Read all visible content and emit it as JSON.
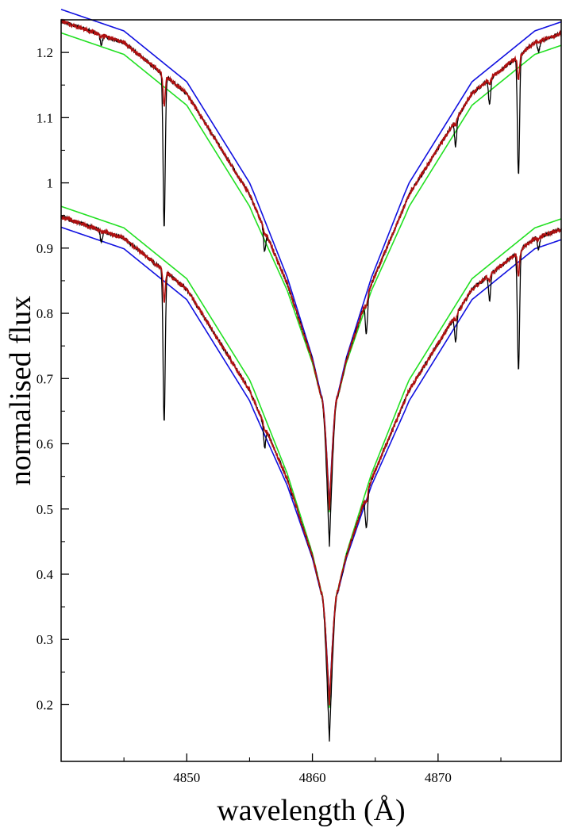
{
  "chart_data": {
    "type": "line",
    "title": "",
    "xlabel": "wavelength (Å)",
    "ylabel": "normalised flux",
    "xlim": [
      4840.0,
      4879.8
    ],
    "ylim": [
      0.113,
      1.25
    ],
    "xticks": [
      4850,
      4860,
      4870
    ],
    "yticks": [
      0.2,
      0.3,
      0.4,
      0.5,
      0.6,
      0.7,
      0.8,
      0.9,
      1,
      1.1,
      1.2
    ],
    "xtick_labels": [
      "4850",
      "4860",
      "4870"
    ],
    "ytick_labels": [
      "0.2",
      "0.3",
      "0.4",
      "0.5",
      "0.6",
      "0.7",
      "0.8",
      "0.9",
      "1",
      "1.1",
      "1.2"
    ],
    "grid": false,
    "line_center": 4861.35,
    "spectra": [
      {
        "offset": 0.3,
        "profile_anchors": [
          [
            4840.0,
            1.248
          ],
          [
            4845.0,
            1.215
          ],
          [
            4850.0,
            1.137
          ],
          [
            4855.0,
            0.982
          ],
          [
            4858.0,
            0.845
          ],
          [
            4860.0,
            0.728
          ],
          [
            4860.7,
            0.672
          ]
        ],
        "core_bottom": {
          "observed": 0.444,
          "model_green": 0.495,
          "model_blue": 0.504,
          "model_red": 0.5
        },
        "absorption_lines": [
          {
            "x": 4843.2,
            "y": 1.21
          },
          {
            "x": 4848.2,
            "y": 0.932
          },
          {
            "x": 4856.2,
            "y": 0.895
          },
          {
            "x": 4864.3,
            "y": 0.769
          },
          {
            "x": 4871.4,
            "y": 1.057
          },
          {
            "x": 4874.1,
            "y": 1.12
          },
          {
            "x": 4876.4,
            "y": 1.012
          },
          {
            "x": 4878.0,
            "y": 1.2
          }
        ]
      },
      {
        "offset": 0.0,
        "profile_anchors": [
          [
            4840.0,
            0.948
          ],
          [
            4845.0,
            0.915
          ],
          [
            4850.0,
            0.837
          ],
          [
            4855.0,
            0.682
          ],
          [
            4858.0,
            0.545
          ],
          [
            4860.0,
            0.428
          ],
          [
            4860.7,
            0.372
          ]
        ],
        "core_bottom": {
          "observed": 0.144,
          "model_green": 0.195,
          "model_blue": 0.204,
          "model_red": 0.2
        },
        "absorption_lines": [
          {
            "x": 4843.2,
            "y": 0.91
          },
          {
            "x": 4848.2,
            "y": 0.632
          },
          {
            "x": 4856.2,
            "y": 0.595
          },
          {
            "x": 4864.3,
            "y": 0.469
          },
          {
            "x": 4871.4,
            "y": 0.757
          },
          {
            "x": 4874.1,
            "y": 0.82
          },
          {
            "x": 4876.4,
            "y": 0.712
          },
          {
            "x": 4878.0,
            "y": 0.9
          }
        ]
      }
    ],
    "series": [
      {
        "id": "observed",
        "color": "#000000"
      },
      {
        "id": "model_red",
        "color": "#b01010"
      },
      {
        "id": "model_green",
        "color": "#22e022"
      },
      {
        "id": "model_blue",
        "color": "#1010e0"
      }
    ],
    "model_deltas": {
      "upper": {
        "model_green": -0.018,
        "model_blue": 0.018,
        "model_red": 0.0
      },
      "lower": {
        "model_green": 0.016,
        "model_blue": -0.016,
        "model_red": 0.0
      }
    }
  }
}
